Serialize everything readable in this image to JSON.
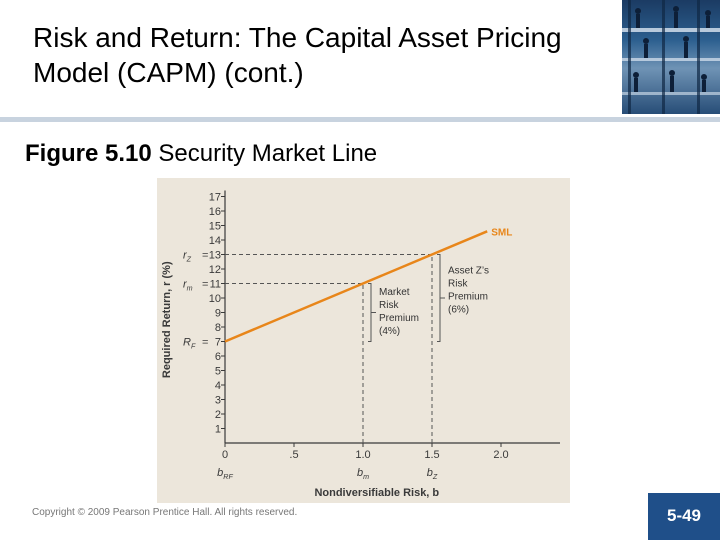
{
  "slide": {
    "title": "Risk and Return: The Capital Asset Pricing Model (CAPM) (cont.)",
    "figure_label": "Figure 5.10",
    "figure_title": "Security Market Line",
    "copyright": "Copyright © 2009 Pearson Prentice Hall. All rights reserved.",
    "page_number": "5-49"
  },
  "chart_data": {
    "type": "line",
    "title": "",
    "xlabel": "Nondiversifiable Risk, b",
    "ylabel": "Required Return, r (%)",
    "xlim": [
      0,
      2.5
    ],
    "ylim": [
      0,
      17
    ],
    "xticks": [
      {
        "value": 0,
        "label": "0"
      },
      {
        "value": 0.5,
        "label": ".5"
      },
      {
        "value": 1.0,
        "label": "1.0"
      },
      {
        "value": 1.5,
        "label": "1.5"
      },
      {
        "value": 2.0,
        "label": "2.0"
      }
    ],
    "x_subticks": [
      {
        "value": 0,
        "label": "b",
        "sub": "RF"
      },
      {
        "value": 1.0,
        "label": "b",
        "sub": "m"
      },
      {
        "value": 1.5,
        "label": "b",
        "sub": "Z"
      }
    ],
    "yticks": [
      1,
      2,
      3,
      4,
      5,
      6,
      7,
      8,
      9,
      10,
      11,
      12,
      13,
      14,
      15,
      16,
      17
    ],
    "ytick_prefixes": [
      {
        "value": 13,
        "label": "r",
        "sub": "Z"
      },
      {
        "value": 11,
        "label": "r",
        "sub": "m"
      },
      {
        "value": 7,
        "label": "R",
        "sub": "F"
      }
    ],
    "series": [
      {
        "name": "SML",
        "x": [
          0,
          1.0,
          1.5,
          1.9
        ],
        "y": [
          7,
          11,
          13,
          14.6
        ]
      }
    ],
    "series_color": "#e8861a",
    "reference_lines": [
      {
        "type": "h",
        "y": 13,
        "x_end": 1.5
      },
      {
        "type": "h",
        "y": 11,
        "x_end": 1.0
      },
      {
        "type": "v",
        "x": 1.0,
        "y_end": 11
      },
      {
        "type": "v",
        "x": 1.5,
        "y_end": 13
      }
    ],
    "annotations": [
      {
        "text": "Market Risk Premium (4%)",
        "lines": [
          "Market",
          "Risk",
          "Premium",
          "(4%)"
        ],
        "bracket_x": 1.0,
        "y_from": 7,
        "y_to": 11
      },
      {
        "text": "Asset Z's Risk Premium (6%)",
        "lines": [
          "Asset Z’s",
          "Risk",
          "Premium",
          "(6%)"
        ],
        "bracket_x": 1.5,
        "y_from": 7,
        "y_to": 13
      }
    ]
  }
}
